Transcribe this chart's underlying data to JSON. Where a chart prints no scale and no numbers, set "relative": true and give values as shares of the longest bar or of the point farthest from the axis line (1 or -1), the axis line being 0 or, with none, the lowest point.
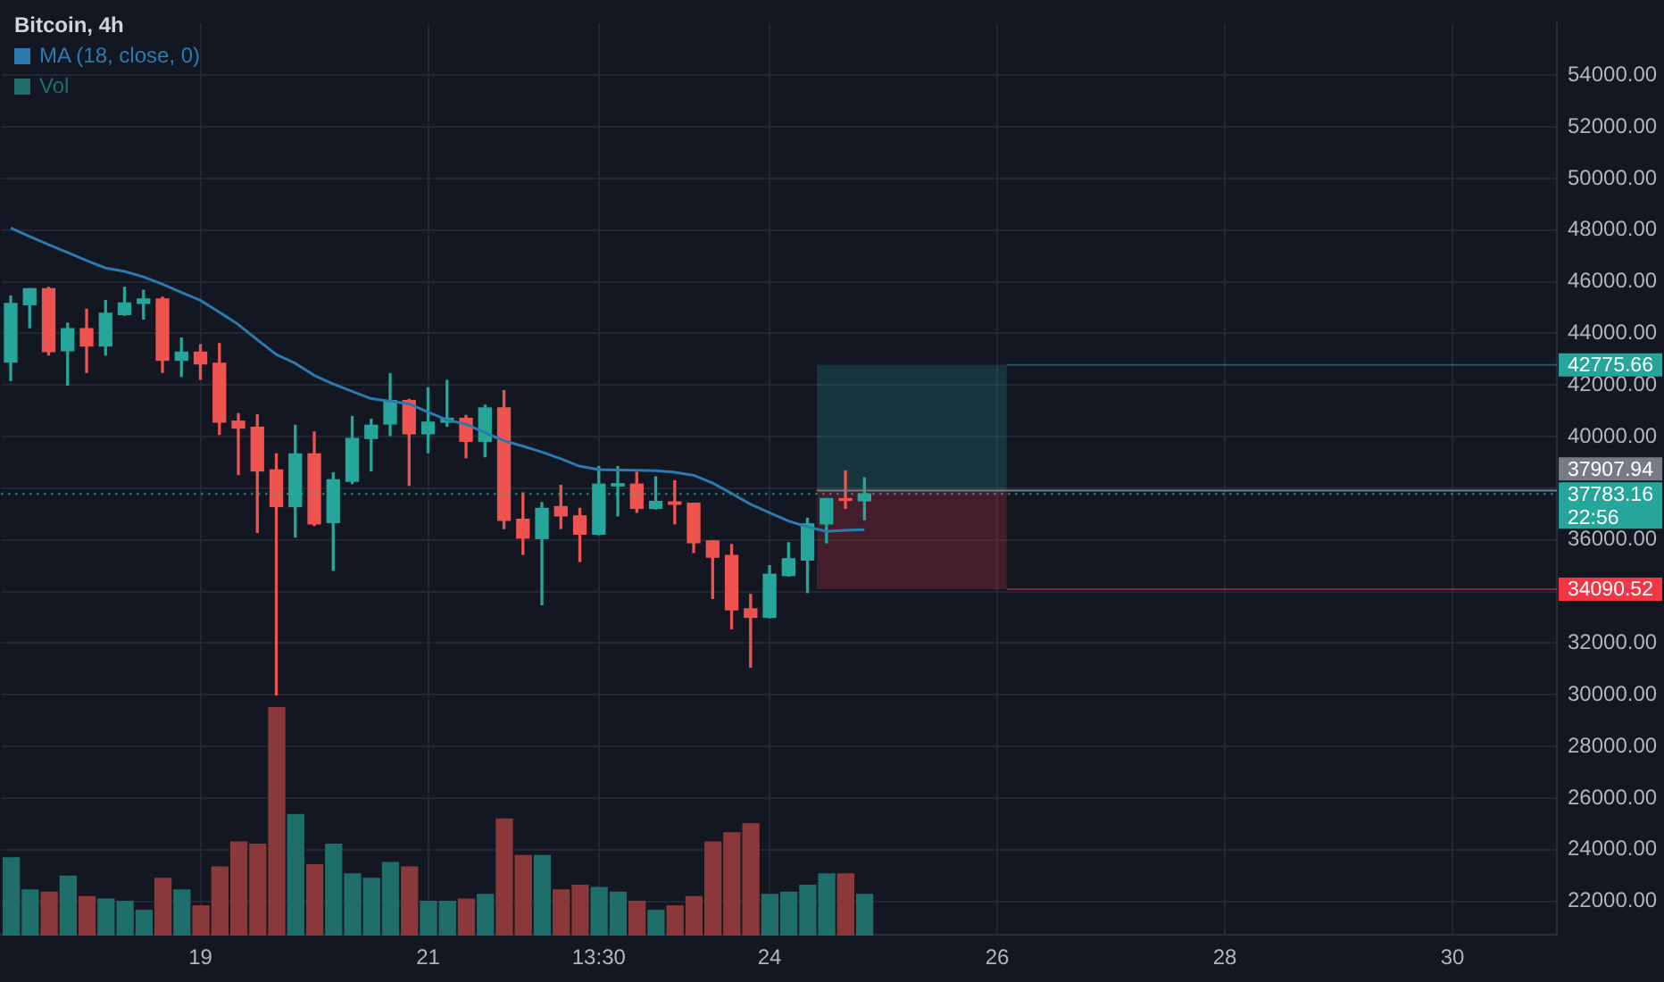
{
  "chart_data": [
    {
      "type": "candlestick",
      "title": "Bitcoin, 4h",
      "legend": "top left",
      "grid": true,
      "categories": [
        null,
        null,
        null,
        null,
        null,
        null,
        null,
        null,
        null,
        null,
        "19",
        null,
        null,
        null,
        null,
        null,
        null,
        null,
        null,
        null,
        null,
        null,
        "21",
        null,
        null,
        null,
        null,
        null,
        null,
        null,
        null,
        "13:30",
        null,
        null,
        null,
        null,
        null,
        null,
        null,
        null,
        "24",
        null,
        null,
        null,
        null,
        null,
        null,
        null,
        null,
        null,
        null,
        null,
        "26",
        null,
        null,
        null,
        null,
        null,
        null,
        null,
        null,
        null,
        null,
        null,
        "28",
        null,
        null,
        null,
        null,
        null,
        null,
        null,
        null,
        null,
        null,
        null,
        "30",
        null,
        null,
        null,
        null,
        null
      ],
      "ylim": [
        20700,
        56000
      ],
      "yticks": [
        {
          "value": 22000,
          "label": "22000.00"
        },
        {
          "value": 24000,
          "label": "24000.00"
        },
        {
          "value": 26000,
          "label": "26000.00"
        },
        {
          "value": 28000,
          "label": "28000.00"
        },
        {
          "value": 30000,
          "label": "30000.00"
        },
        {
          "value": 32000,
          "label": "32000.00"
        },
        {
          "value": 34000,
          "label": null
        },
        {
          "value": 36000,
          "label": "36000.00"
        },
        {
          "value": 38000,
          "label": null
        },
        {
          "value": 40000,
          "label": "40000.00"
        },
        {
          "value": 42000,
          "label": "42000.00"
        },
        {
          "value": 44000,
          "label": "44000.00"
        },
        {
          "value": 46000,
          "label": "46000.00"
        },
        {
          "value": 48000,
          "label": "48000.00"
        },
        {
          "value": 50000,
          "label": "50000.00"
        },
        {
          "value": 52000,
          "label": "52000.00"
        },
        {
          "value": 54000,
          "label": "54000.00"
        }
      ],
      "series": [
        {
          "colors": [
            "#26a69a",
            "#26a69a",
            "#ef5350",
            "#26a69a",
            "#ef5350",
            "#26a69a",
            "#26a69a",
            "#26a69a",
            "#ef5350",
            "#26a69a",
            "#ef5350",
            "#ef5350",
            "#ef5350",
            "#ef5350",
            "#ef5350",
            "#26a69a",
            "#ef5350",
            "#26a69a",
            "#26a69a",
            "#26a69a",
            "#26a69a",
            "#ef5350",
            "#26a69a",
            "#26a69a",
            "#ef5350",
            "#26a69a",
            "#ef5350",
            "#ef5350",
            "#26a69a",
            "#ef5350",
            "#ef5350",
            "#26a69a",
            "#26a69a",
            "#ef5350",
            "#26a69a",
            "#ef5350",
            "#ef5350",
            "#ef5350",
            "#ef5350",
            "#ef5350",
            "#26a69a",
            "#26a69a",
            "#26a69a",
            "#26a69a",
            "#ef5350",
            "#26a69a",
            "#26a69a",
            "#26a69a",
            "#26a69a",
            "#26a69a",
            "#26a69a",
            "#26a69a",
            "#26a69a",
            "#26a69a",
            "#26a69a",
            "#26a69a",
            "#26a69a",
            "#26a69a",
            "#26a69a",
            "#26a69a",
            "#26a69a",
            "#26a69a",
            "#26a69a",
            "#26a69a",
            "#26a69a",
            "#26a69a",
            "#26a69a",
            "#26a69a",
            "#26a69a",
            "#26a69a",
            "#26a69a",
            "#26a69a",
            "#26a69a",
            "#26a69a",
            "#26a69a",
            "#26a69a",
            "#26a69a",
            "#26a69a",
            "#26a69a",
            "#26a69a",
            "#26a69a",
            "#26a69a"
          ],
          "ohlc": [
            [
              42890,
              45440,
              42180,
              45160
            ],
            [
              45110,
              45730,
              44220,
              45730
            ],
            [
              45730,
              45780,
              43160,
              43290
            ],
            [
              43330,
              44400,
              42000,
              44180
            ],
            [
              44180,
              44930,
              42490,
              43510
            ],
            [
              43510,
              45270,
              43160,
              44780
            ],
            [
              44730,
              45780,
              44700,
              45180
            ],
            [
              45160,
              45670,
              44560,
              45330
            ],
            [
              45330,
              45400,
              42490,
              42960
            ],
            [
              42960,
              43820,
              42330,
              43270
            ],
            [
              43270,
              43560,
              42220,
              42820
            ],
            [
              42840,
              43600,
              40090,
              40560
            ],
            [
              40600,
              40890,
              38530,
              40330
            ],
            [
              40360,
              40840,
              36290,
              38670
            ],
            [
              38710,
              39330,
              30000,
              37290
            ],
            [
              37290,
              40440,
              36110,
              39330
            ],
            [
              39330,
              40180,
              36560,
              36620
            ],
            [
              36670,
              38600,
              34820,
              38330
            ],
            [
              38270,
              40780,
              38180,
              39930
            ],
            [
              39930,
              40670,
              38670,
              40440
            ],
            [
              40490,
              42440,
              40040,
              41400
            ],
            [
              41400,
              41440,
              38110,
              40110
            ],
            [
              40110,
              41890,
              39380,
              40560
            ],
            [
              40560,
              42180,
              40400,
              40710
            ],
            [
              40710,
              40820,
              39180,
              39820
            ],
            [
              39820,
              41220,
              39220,
              41110
            ],
            [
              41110,
              41780,
              36440,
              36760
            ],
            [
              36800,
              37820,
              35440,
              36070
            ],
            [
              36050,
              37440,
              33490,
              37220
            ],
            [
              37290,
              38110,
              36440,
              36930
            ],
            [
              36930,
              37220,
              35160,
              36220
            ],
            [
              36220,
              38840,
              36200,
              38160
            ],
            [
              38090,
              38840,
              36930,
              38180
            ],
            [
              38160,
              38620,
              37070,
              37220
            ],
            [
              37220,
              38440,
              37200,
              37490
            ],
            [
              37470,
              38290,
              36620,
              37380
            ],
            [
              37420,
              37420,
              35510,
              35890
            ],
            [
              35960,
              35960,
              33730,
              35330
            ],
            [
              35400,
              35820,
              32560,
              33290
            ],
            [
              33330,
              33890,
              31070,
              33000
            ],
            [
              33000,
              35000,
              32980,
              34670
            ],
            [
              34620,
              35890,
              34600,
              35270
            ],
            [
              35220,
              36840,
              33960,
              36620
            ],
            [
              36620,
              37600,
              35890,
              37600
            ],
            [
              37600,
              38670,
              37220,
              37530
            ],
            [
              37510,
              38400,
              36780,
              37783.16
            ],
            null,
            null,
            null,
            null,
            null,
            null,
            null,
            null,
            null,
            null,
            null,
            null,
            null,
            null,
            null,
            null,
            null,
            null,
            null,
            null,
            null,
            null,
            null,
            null,
            null,
            null,
            null,
            null,
            null,
            null,
            null,
            null,
            null,
            null,
            null,
            null
          ]
        },
        {
          "name": "MA (18, close, 0)",
          "type": "line",
          "color": "#2b7bb0",
          "values": [
            48080,
            47750,
            47430,
            47130,
            46820,
            46530,
            46400,
            46190,
            45900,
            45580,
            45280,
            44820,
            44340,
            43750,
            43180,
            42840,
            42370,
            42040,
            41750,
            41470,
            41370,
            41270,
            40950,
            40650,
            40480,
            40150,
            39840,
            39630,
            39400,
            39140,
            38850,
            38720,
            38710,
            38700,
            38680,
            38620,
            38500,
            38200,
            37800,
            37380,
            37050,
            36730,
            36500,
            36330,
            36370,
            36400,
            null,
            null,
            null,
            null,
            null,
            null,
            null,
            null,
            null,
            null,
            null,
            null,
            null,
            null,
            null,
            null,
            null,
            null,
            null,
            null,
            null,
            null,
            null,
            null,
            null,
            null,
            null,
            null,
            null,
            null,
            null,
            null,
            null,
            null,
            null,
            null
          ]
        }
      ],
      "bands": [
        {
          "axis": "y",
          "from": 37907.94,
          "to": 42775.66,
          "label": "42775.66",
          "color": "#26a69a"
        },
        {
          "axis": "y",
          "from": 34090.52,
          "to": 37907.94,
          "label": "34090.52",
          "color": "#f23645"
        }
      ],
      "ref_lines": [
        {
          "axis": "y",
          "value": 37783.16,
          "label": "37783.16",
          "color": "#26a69a",
          "line_style": "dotted"
        },
        {
          "axis": "y",
          "value": 37907.94,
          "label": "37907.94",
          "color": "#787b86",
          "line_style": "solid"
        }
      ],
      "annotations": [
        "22:56"
      ]
    },
    {
      "type": "bar",
      "relative": true,
      "tick_labels": false,
      "legend": "top left",
      "categories": [
        null,
        null,
        null,
        null,
        null,
        null,
        null,
        null,
        null,
        null,
        null,
        null,
        null,
        null,
        null,
        null,
        null,
        null,
        null,
        null,
        null,
        null,
        null,
        null,
        null,
        null,
        null,
        null,
        null,
        null,
        null,
        null,
        null,
        null,
        null,
        null,
        null,
        null,
        null,
        null,
        null,
        null,
        null,
        null,
        null,
        null,
        null,
        null,
        null,
        null,
        null,
        null,
        null,
        null,
        null,
        null,
        null,
        null,
        null,
        null,
        null,
        null,
        null,
        null,
        null,
        null,
        null,
        null,
        null,
        null,
        null,
        null,
        null,
        null,
        null,
        null,
        null,
        null,
        null,
        null,
        null,
        null
      ],
      "series": [
        {
          "name": "Vol",
          "colors": [
            "#1f6e69",
            "#1f6e69",
            "#8b383b",
            "#1f6e69",
            "#8b383b",
            "#1f6e69",
            "#1f6e69",
            "#1f6e69",
            "#8b383b",
            "#1f6e69",
            "#8b383b",
            "#8b383b",
            "#8b383b",
            "#8b383b",
            "#8b383b",
            "#1f6e69",
            "#8b383b",
            "#1f6e69",
            "#1f6e69",
            "#1f6e69",
            "#1f6e69",
            "#8b383b",
            "#1f6e69",
            "#1f6e69",
            "#8b383b",
            "#1f6e69",
            "#8b383b",
            "#8b383b",
            "#1f6e69",
            "#8b383b",
            "#8b383b",
            "#1f6e69",
            "#1f6e69",
            "#8b383b",
            "#1f6e69",
            "#8b383b",
            "#8b383b",
            "#8b383b",
            "#8b383b",
            "#8b383b",
            "#1f6e69",
            "#1f6e69",
            "#1f6e69",
            "#1f6e69",
            "#8b383b",
            "#1f6e69",
            "#1f6e69",
            "#1f6e69",
            "#1f6e69",
            "#1f6e69",
            "#1f6e69",
            "#1f6e69",
            "#1f6e69",
            "#1f6e69",
            "#1f6e69",
            "#1f6e69",
            "#1f6e69",
            "#1f6e69",
            "#1f6e69",
            "#1f6e69",
            "#1f6e69",
            "#1f6e69",
            "#1f6e69",
            "#1f6e69",
            "#1f6e69",
            "#1f6e69",
            "#1f6e69",
            "#1f6e69",
            "#1f6e69",
            "#1f6e69",
            "#1f6e69",
            "#1f6e69",
            "#1f6e69",
            "#1f6e69",
            "#1f6e69",
            "#1f6e69",
            "#1f6e69",
            "#1f6e69",
            "#1f6e69",
            "#1f6e69",
            "#1f6e69",
            "#1f6e69"
          ],
          "values": [
            0.34,
            0.2,
            0.19,
            0.26,
            0.17,
            0.16,
            0.15,
            0.11,
            0.25,
            0.2,
            0.13,
            0.3,
            0.41,
            0.4,
            1,
            0.53,
            0.31,
            0.4,
            0.27,
            0.25,
            0.32,
            0.3,
            0.15,
            0.15,
            0.16,
            0.18,
            0.51,
            0.35,
            0.35,
            0.2,
            0.22,
            0.21,
            0.19,
            0.15,
            0.11,
            0.13,
            0.17,
            0.41,
            0.45,
            0.49,
            0.18,
            0.19,
            0.22,
            0.27,
            0.27,
            0.18,
            null,
            null,
            null,
            null,
            null,
            null,
            null,
            null,
            null,
            null,
            null,
            null,
            null,
            null,
            null,
            null,
            null,
            null,
            null,
            null,
            null,
            null,
            null,
            null,
            null,
            null,
            null,
            null,
            null,
            null,
            null,
            null,
            null,
            null,
            null,
            null
          ]
        }
      ]
    }
  ]
}
